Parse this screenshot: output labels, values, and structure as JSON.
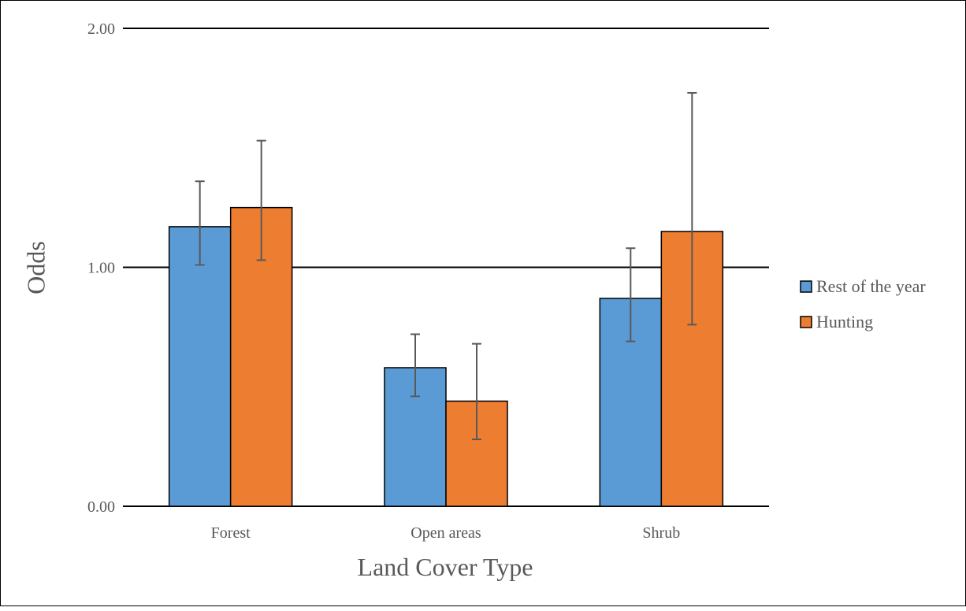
{
  "chart_data": {
    "type": "bar",
    "title": "",
    "xlabel": "Land Cover Type",
    "ylabel": "Odds",
    "ylim": [
      0,
      2
    ],
    "yticks": [
      "0.00",
      "1.00",
      "2.00"
    ],
    "grid": true,
    "legend_position": "right",
    "categories": [
      "Forest",
      "Open areas",
      "Shrub"
    ],
    "series": [
      {
        "name": "Rest of the year",
        "color": "#5B9BD5",
        "values": [
          1.17,
          0.58,
          0.87
        ],
        "error_low": [
          1.01,
          0.46,
          0.69
        ],
        "error_high": [
          1.36,
          0.72,
          1.08
        ]
      },
      {
        "name": "Hunting",
        "color": "#ED7D31",
        "values": [
          1.25,
          0.44,
          1.15
        ],
        "error_low": [
          1.03,
          0.28,
          0.76
        ],
        "error_high": [
          1.53,
          0.68,
          1.73
        ]
      }
    ]
  }
}
